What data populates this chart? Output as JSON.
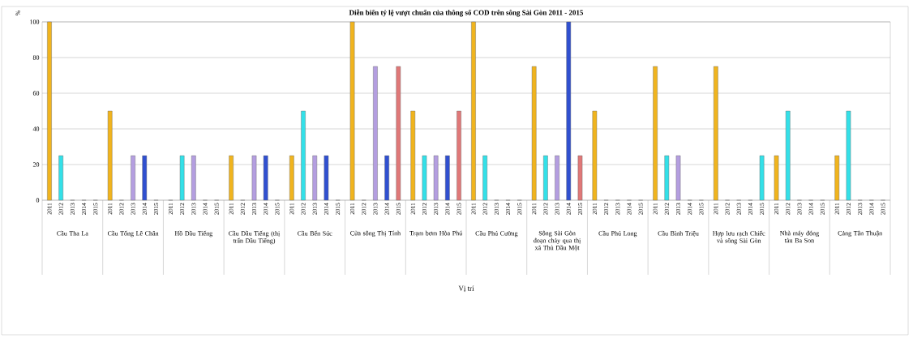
{
  "chart_data": {
    "type": "bar",
    "title": "Diễn biến tỷ lệ vượt chuẩn của thông số COD trên sông Sài Gòn 2011 - 2015",
    "xlabel": "Vị trí",
    "ylabel": "%",
    "categories": [
      "Cầu Tha La",
      "Cầu Tống Lê Chân",
      "Hồ Dầu Tiếng",
      "Cầu Dầu Tiếng (thị trấn Dầu Tiếng)",
      "Cầu Bến Súc",
      "Cửa sông Thị Tính",
      "Trạm bơm Hòa Phú",
      "Cầu Phú Cường",
      "Sông Sài Gòn đoạn chảy qua thị xã Thủ Dầu Một",
      "Cầu Phú Long",
      "Cầu Bình Triệu",
      "Hợp lưu rạch Chiếc và sông Sài Gòn",
      "Nhà máy đóng tàu Ba Son",
      "Cảng Tân Thuận"
    ],
    "series": [
      {
        "name": "2011",
        "color": "#f0b41e",
        "values": [
          100,
          50,
          0,
          25,
          25,
          100,
          50,
          100,
          75,
          50,
          75,
          75,
          25,
          25
        ]
      },
      {
        "name": "2012",
        "color": "#33e0e8",
        "values": [
          25,
          0,
          25,
          0,
          50,
          0,
          25,
          25,
          25,
          0,
          25,
          0,
          50,
          50
        ]
      },
      {
        "name": "2013",
        "color": "#b49ee0",
        "values": [
          0,
          25,
          25,
          25,
          25,
          75,
          25,
          0,
          25,
          0,
          25,
          0,
          0,
          0
        ]
      },
      {
        "name": "2014",
        "color": "#3050d0",
        "values": [
          0,
          25,
          0,
          25,
          25,
          25,
          25,
          0,
          100,
          0,
          0,
          0,
          0,
          0
        ]
      },
      {
        "name": "2015",
        "color": "#e07878",
        "colors": [
          null,
          null,
          null,
          null,
          null,
          null,
          null,
          null,
          null,
          null,
          null,
          "#33e0e8",
          null,
          null
        ],
        "values": [
          0,
          0,
          0,
          0,
          0,
          75,
          50,
          0,
          25,
          0,
          0,
          25,
          0,
          0
        ]
      }
    ],
    "legend": "bottom",
    "ylim": [
      0,
      100
    ],
    "yticks": [
      0,
      20,
      40,
      60,
      80,
      100
    ],
    "grid": "y"
  }
}
